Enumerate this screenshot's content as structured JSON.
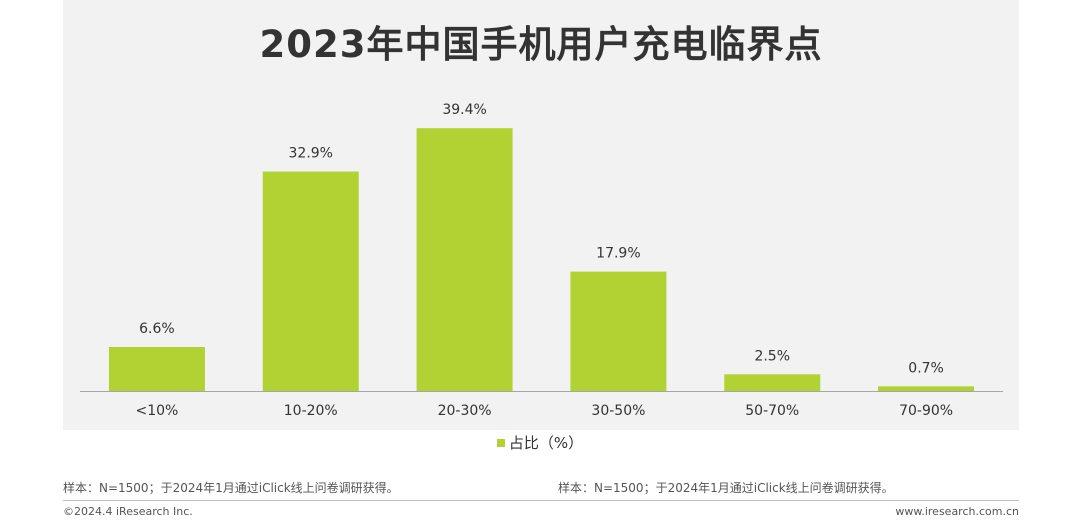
{
  "title": "2023年中国手机用户充电临界点",
  "colors": {
    "bar": "#b1d232",
    "panel_bg": "#f2f2f2",
    "text": "#333333"
  },
  "chart_data": {
    "type": "bar",
    "categories": [
      "<10%",
      "10-20%",
      "20-30%",
      "30-50%",
      "50-70%",
      "70-90%"
    ],
    "series": [
      {
        "name": "占比（%）",
        "values": [
          6.6,
          32.9,
          39.4,
          17.9,
          2.5,
          0.7
        ]
      }
    ],
    "data_labels": [
      "6.6%",
      "32.9%",
      "39.4%",
      "17.9%",
      "2.5%",
      "0.7%"
    ],
    "ylim": [
      0,
      40
    ],
    "grid": false,
    "legend_position": "bottom-center"
  },
  "legend": {
    "label": "占比（%）"
  },
  "notes": {
    "left": "样本：N=1500；于2024年1月通过iClick线上问卷调研获得。",
    "right": "样本：N=1500；于2024年1月通过iClick线上问卷调研获得。"
  },
  "footer": {
    "copyright": "©2024.4 iResearch Inc.",
    "url": "www.iresearch.com.cn"
  }
}
